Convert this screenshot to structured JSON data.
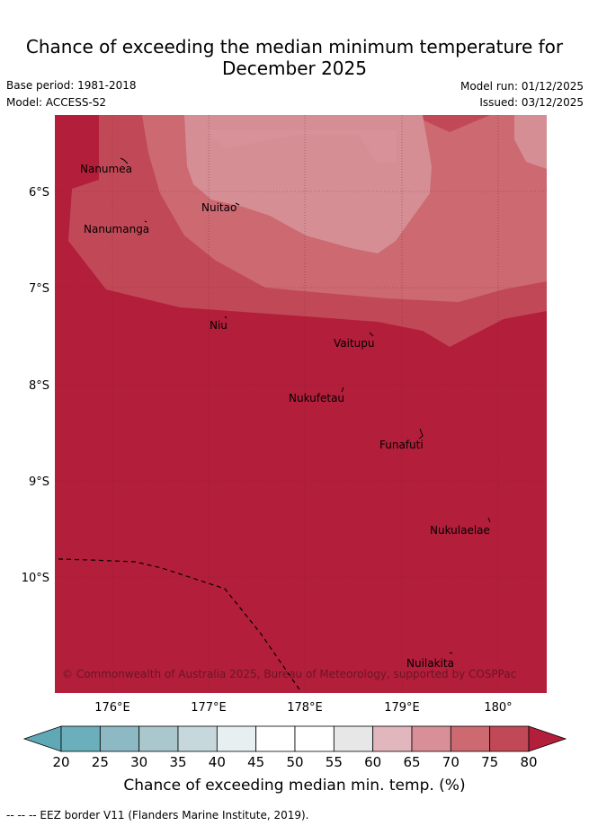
{
  "title_line1": "Chance of exceeding the median minimum temperature for",
  "title_line2": "December 2025",
  "base_period": "Base period: 1981-2018",
  "model": "Model: ACCESS-S2",
  "model_run": "Model run: 01/12/2025",
  "issued": "Issued: 03/12/2025",
  "lat_labels": [
    "6°S",
    "7°S",
    "8°S",
    "9°S",
    "10°S"
  ],
  "lon_labels": [
    "176°E",
    "177°E",
    "178°E",
    "179°E",
    "180°"
  ],
  "islands": [
    "Nanumea",
    "Nuitao",
    "Nanumanga",
    "Niu",
    "Vaitupu",
    "Nukufetau",
    "Funafuti",
    "Nukulaelae",
    "Nuilakita"
  ],
  "copyright": "© Commonwealth of Australia 2025, Bureau of Meteorology, supported by COSPPac",
  "colorbar": {
    "ticks": [
      "20",
      "25",
      "30",
      "35",
      "40",
      "45",
      "50",
      "55",
      "60",
      "65",
      "70",
      "75",
      "80"
    ],
    "colors": [
      "#6aafbb",
      "#8cb9c4",
      "#a9c7cc",
      "#c6d8dc",
      "#e8eff1",
      "#ffffff",
      "#ffffff",
      "#e7e7e8",
      "#e1b6bd",
      "#d88f97",
      "#cc6971",
      "#c14957"
    ],
    "under_color": "#5fa8b5",
    "over_color": "#b31e3a",
    "label": "Chance of exceeding median min. temp. (%)"
  },
  "map_colors": {
    "c80": "#b31e3a",
    "c75": "#c14957",
    "c70": "#cc6971",
    "c65": "#d68e95"
  },
  "footer": "--  --  -- EEZ border V11 (Flanders Marine Institute, 2019)."
}
